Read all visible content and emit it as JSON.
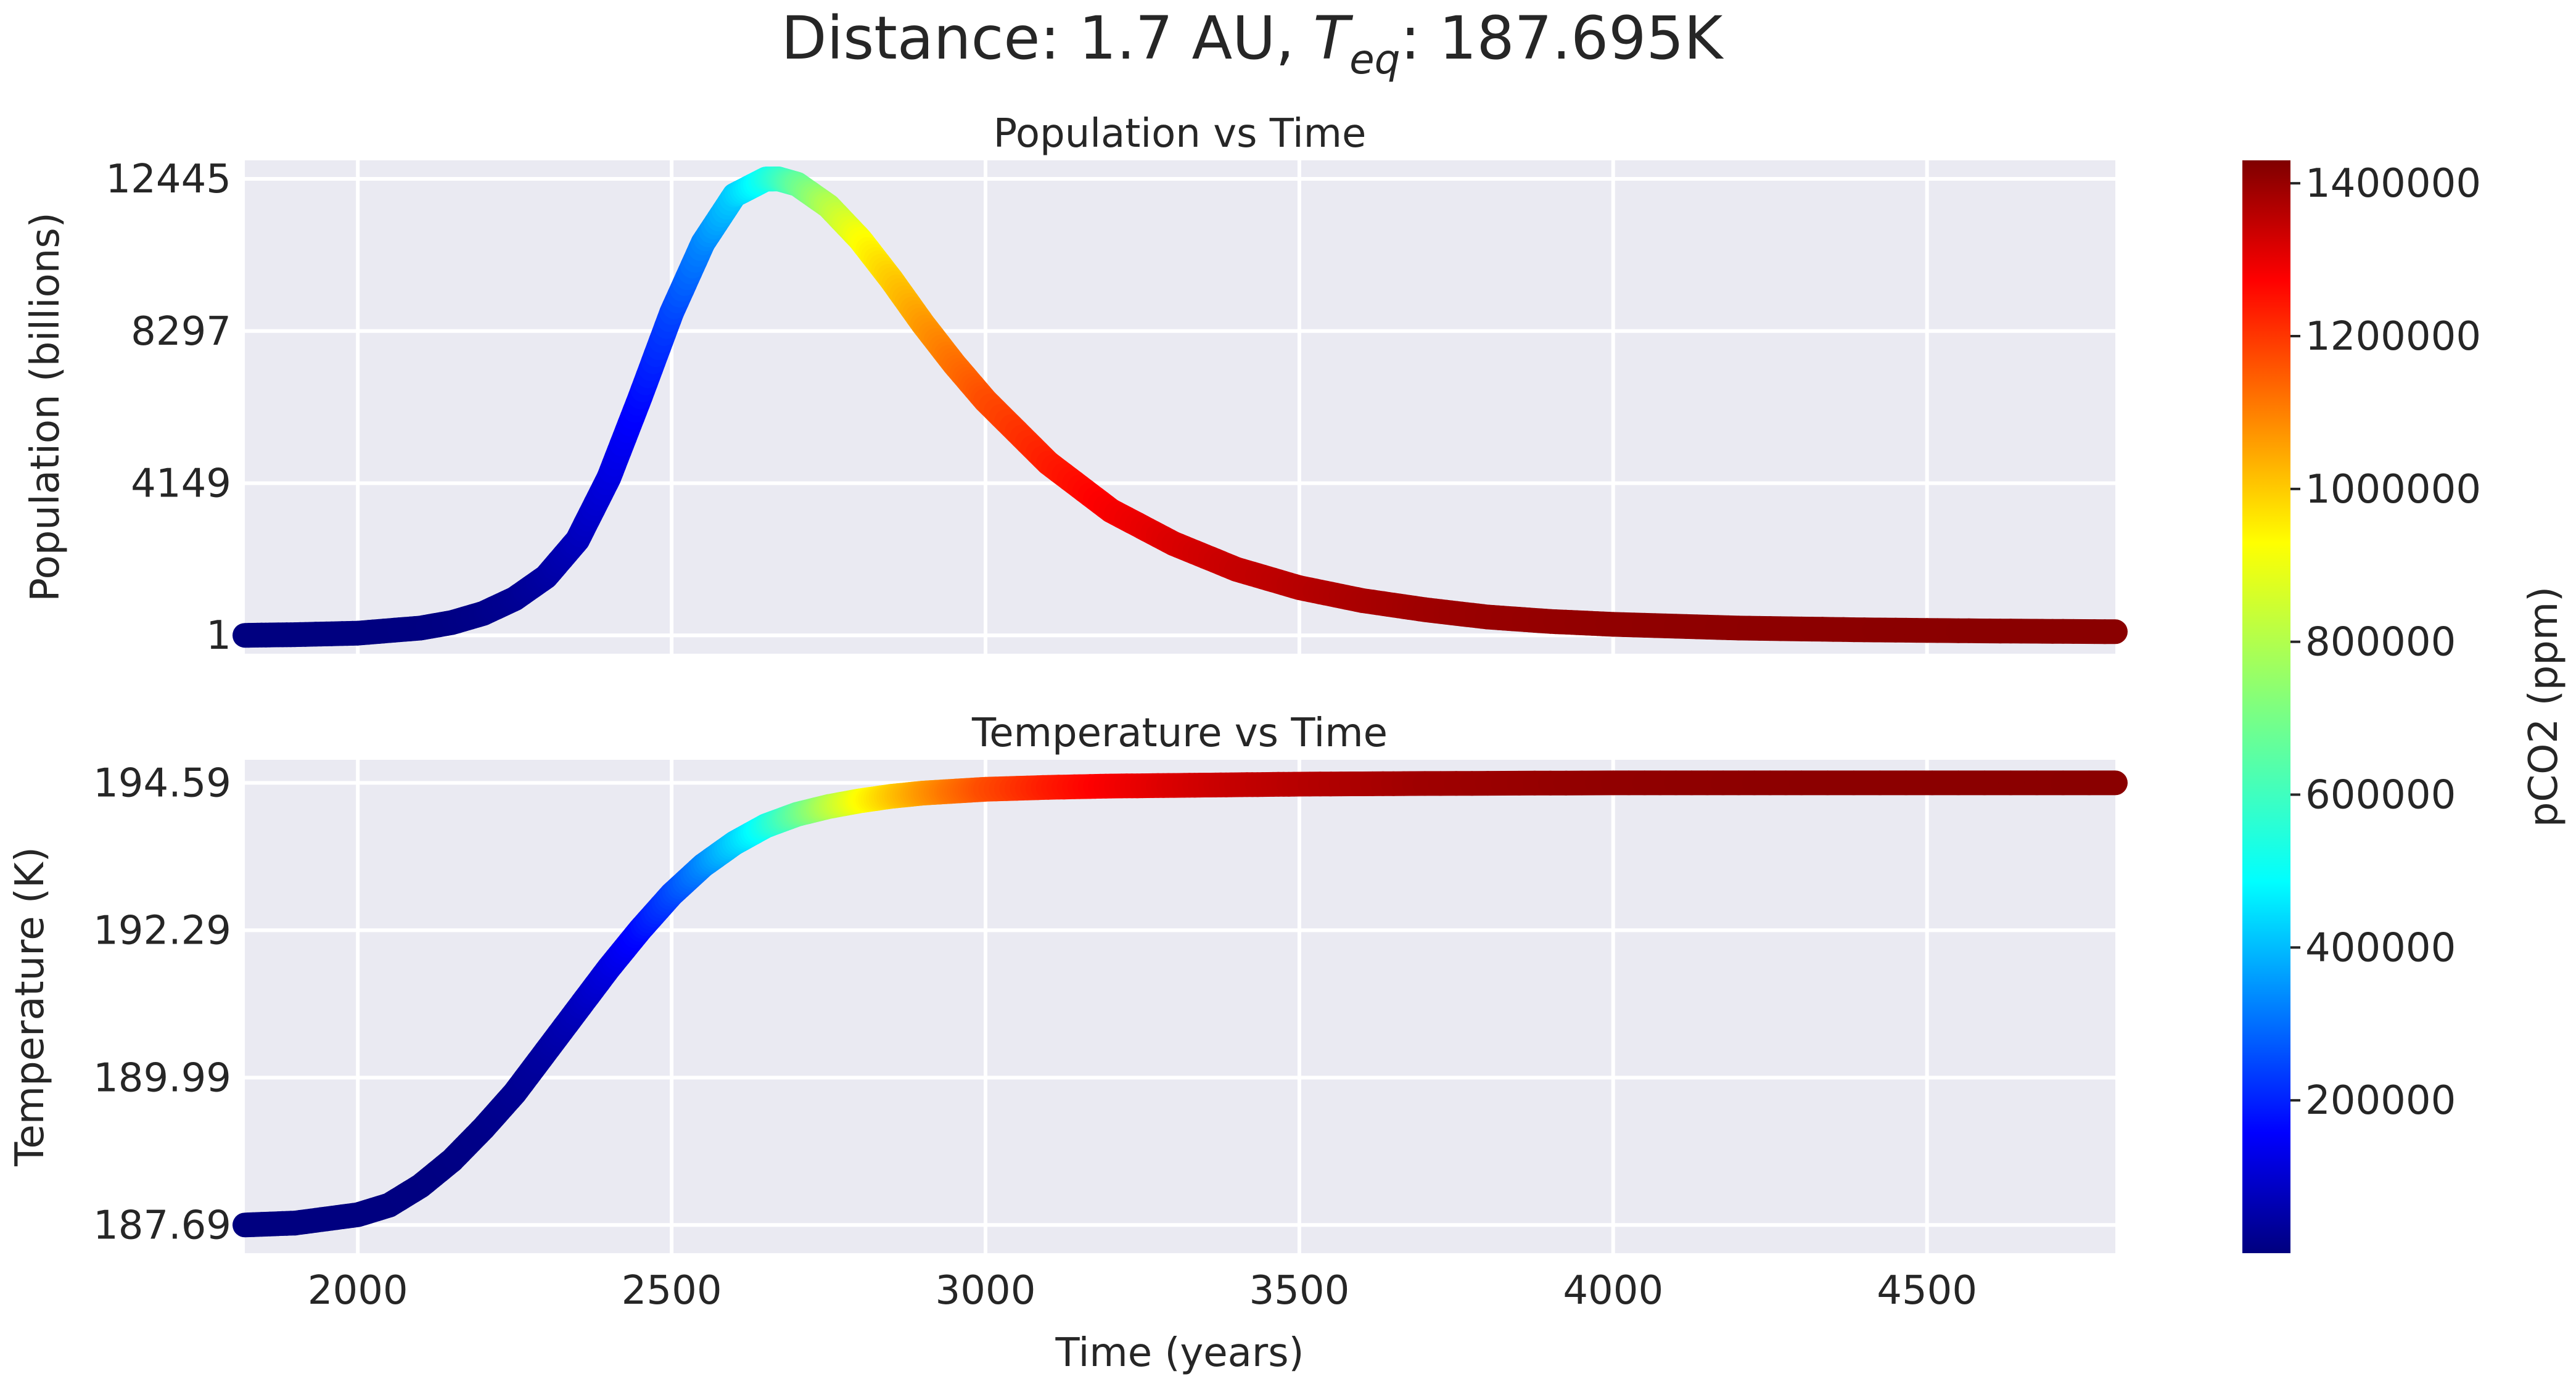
{
  "figure": {
    "title_prefix": "Distance: 1.7 AU,   ",
    "title_symbol": "T",
    "title_subscript": "eq",
    "title_suffix": ": 187.695K"
  },
  "chart_data": [
    {
      "type": "line",
      "title": "Population vs Time",
      "xlabel": "",
      "ylabel": "Population (billions)",
      "xlim": [
        1820,
        4800
      ],
      "ylim": [
        -500,
        12950
      ],
      "x_ticks": [
        2000,
        2500,
        3000,
        3500,
        4000,
        4500
      ],
      "x_tick_labels": [
        "",
        "",
        "",
        "",
        "",
        ""
      ],
      "y_ticks": [
        1,
        4149,
        8297,
        12445
      ],
      "y_tick_labels": [
        "1",
        "4149",
        "8297",
        "12445"
      ],
      "grid": true,
      "color_by": "pCO2 (ppm)",
      "colormap": "jet",
      "series": [
        {
          "x": [
            1820,
            1900,
            2000,
            2100,
            2150,
            2200,
            2250,
            2300,
            2350,
            2400,
            2450,
            2500,
            2550,
            2600,
            2650,
            2670,
            2700,
            2750,
            2800,
            2850,
            2900,
            2950,
            3000,
            3100,
            3200,
            3300,
            3400,
            3500,
            3600,
            3700,
            3800,
            3900,
            4000,
            4200,
            4400,
            4600,
            4800
          ],
          "values": [
            1,
            20,
            60,
            200,
            350,
            600,
            1000,
            1600,
            2600,
            4300,
            6500,
            8800,
            10700,
            12000,
            12440,
            12445,
            12300,
            11700,
            10800,
            9700,
            8500,
            7400,
            6400,
            4700,
            3400,
            2500,
            1800,
            1300,
            950,
            700,
            500,
            380,
            300,
            200,
            150,
            120,
            100
          ],
          "pco2": [
            0,
            0,
            0,
            2000,
            5000,
            12000,
            25000,
            45000,
            80000,
            130000,
            190000,
            270000,
            360000,
            460000,
            560000,
            600000,
            670000,
            780000,
            880000,
            960000,
            1030000,
            1090000,
            1140000,
            1210000,
            1260000,
            1300000,
            1330000,
            1350000,
            1370000,
            1385000,
            1395000,
            1400000,
            1405000,
            1410000,
            1413000,
            1415000,
            1415000
          ]
        }
      ]
    },
    {
      "type": "line",
      "title": "Temperature vs Time",
      "xlabel": "Time (years)",
      "ylabel": "Temperature (K)",
      "xlim": [
        1820,
        4800
      ],
      "ylim": [
        187.25,
        194.95
      ],
      "x_ticks": [
        2000,
        2500,
        3000,
        3500,
        4000,
        4500
      ],
      "x_tick_labels": [
        "2000",
        "2500",
        "3000",
        "3500",
        "4000",
        "4500"
      ],
      "y_ticks": [
        187.69,
        189.99,
        192.29,
        194.59
      ],
      "y_tick_labels": [
        "187.69",
        "189.99",
        "192.29",
        "194.59"
      ],
      "grid": true,
      "color_by": "pCO2 (ppm)",
      "colormap": "jet",
      "series": [
        {
          "x": [
            1820,
            1900,
            2000,
            2050,
            2100,
            2150,
            2200,
            2250,
            2300,
            2350,
            2400,
            2450,
            2500,
            2550,
            2600,
            2650,
            2700,
            2750,
            2800,
            2850,
            2900,
            2950,
            3000,
            3100,
            3200,
            3300,
            3400,
            3500,
            3700,
            4000,
            4300,
            4800
          ],
          "values": [
            187.69,
            187.72,
            187.85,
            188.0,
            188.3,
            188.7,
            189.2,
            189.75,
            190.4,
            191.05,
            191.7,
            192.3,
            192.85,
            193.3,
            193.65,
            193.92,
            194.1,
            194.22,
            194.31,
            194.38,
            194.43,
            194.46,
            194.49,
            194.52,
            194.54,
            194.55,
            194.56,
            194.57,
            194.58,
            194.59,
            194.59,
            194.59
          ],
          "pco2": [
            0,
            0,
            0,
            1000,
            2000,
            5000,
            12000,
            25000,
            45000,
            80000,
            130000,
            190000,
            270000,
            360000,
            460000,
            560000,
            670000,
            780000,
            880000,
            960000,
            1030000,
            1090000,
            1140000,
            1210000,
            1260000,
            1300000,
            1330000,
            1350000,
            1385000,
            1405000,
            1412000,
            1415000
          ]
        }
      ]
    }
  ],
  "colorbar": {
    "label": "pCO2 (ppm)",
    "colormap": "jet",
    "vmin": 0,
    "vmax": 1430000,
    "ticks": [
      200000,
      400000,
      600000,
      800000,
      1000000,
      1200000,
      1400000
    ],
    "tick_labels": [
      "200000",
      "400000",
      "600000",
      "800000",
      "1000000",
      "1200000",
      "1400000"
    ]
  }
}
